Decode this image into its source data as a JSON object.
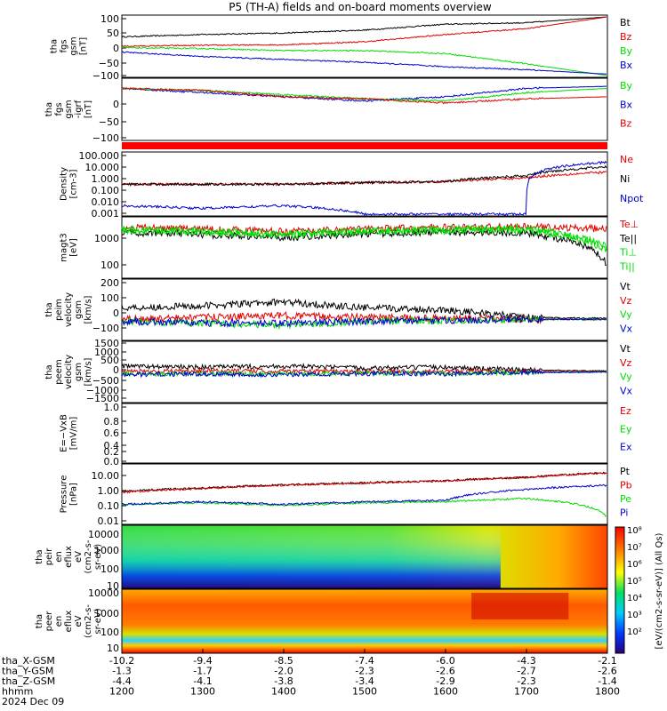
{
  "title": "P5 (TH-A) fields and on-board moments overview",
  "colors": {
    "black": "#000000",
    "red": "#e00000",
    "green": "#00dd00",
    "blue": "#0000cc"
  },
  "x_axis": {
    "ticks": [
      1200,
      1300,
      1400,
      1500,
      1600,
      1700,
      1800
    ],
    "rows": [
      {
        "label": "tha_X-GSM",
        "values": [
          "-10.2",
          "-9.4",
          "-8.5",
          "-7.4",
          "-6.0",
          "-4.3",
          "-2.1"
        ]
      },
      {
        "label": "tha_Y-GSM",
        "values": [
          "-1.3",
          "-1.7",
          "-2.0",
          "-2.3",
          "-2.6",
          "-2.7",
          "-2.6"
        ]
      },
      {
        "label": "tha_Z-GSM",
        "values": [
          "-4.4",
          "-4.1",
          "-3.8",
          "-3.4",
          "-2.9",
          "-2.3",
          "-1.4"
        ]
      },
      {
        "label": "hhmm",
        "values": [
          "1200",
          "1300",
          "1400",
          "1500",
          "1600",
          "1700",
          "1800"
        ]
      }
    ],
    "date": "2024 Dec 09"
  },
  "panels": [
    {
      "id": "fgs",
      "ylabel": [
        "tha",
        "fgs",
        "gsm",
        "[nT]"
      ],
      "ticks": [
        "100",
        "50",
        "0",
        "−50",
        "−100"
      ],
      "legend": [
        {
          "t": "Bt",
          "c": "black"
        },
        {
          "t": "Bz",
          "c": "red"
        },
        {
          "t": "By",
          "c": "green"
        },
        {
          "t": "Bx",
          "c": "blue"
        }
      ]
    },
    {
      "id": "fgs_dip",
      "ylabel": [
        "tha",
        "fgs",
        "gsm",
        "-igrf",
        "[nT]"
      ],
      "ticks": [
        "0",
        "−50",
        "−100"
      ],
      "legend": [
        {
          "t": "By",
          "c": "green"
        },
        {
          "t": "Bx",
          "c": "blue"
        },
        {
          "t": "Bz",
          "c": "red"
        }
      ]
    },
    {
      "id": "density",
      "ylabel": [
        "Density",
        "[cm-3]"
      ],
      "ticks": [
        "100.000",
        "10.000",
        "1.000",
        "0.100",
        "0.010",
        "0.001"
      ],
      "legend": [
        {
          "t": "Ne",
          "c": "red"
        },
        {
          "t": "Ni",
          "c": "black"
        },
        {
          "t": "Npot",
          "c": "blue"
        }
      ]
    },
    {
      "id": "temp",
      "ylabel": [
        "magt3",
        "[eV]"
      ],
      "ticks": [
        "1000",
        "100"
      ],
      "legend": [
        {
          "t": "Te⊥",
          "c": "red"
        },
        {
          "t": "Te||",
          "c": "black"
        },
        {
          "t": "Ti⊥",
          "c": "green"
        },
        {
          "t": "Ti||",
          "c": "green"
        }
      ]
    },
    {
      "id": "peim",
      "ylabel": [
        "tha",
        "peim",
        "velocity",
        "gsm",
        "[km/s]"
      ],
      "ticks": [
        "200",
        "100",
        "0",
        "−100"
      ],
      "legend": [
        {
          "t": "Vt",
          "c": "black"
        },
        {
          "t": "Vz",
          "c": "red"
        },
        {
          "t": "Vy",
          "c": "green"
        },
        {
          "t": "Vx",
          "c": "blue"
        }
      ]
    },
    {
      "id": "peem",
      "ylabel": [
        "tha",
        "peem",
        "velocity",
        "gsm",
        "[km/s]"
      ],
      "ticks": [
        "1500",
        "1000",
        "500",
        "0",
        "−500",
        "−1000",
        "−1500"
      ],
      "legend": [
        {
          "t": "Vt",
          "c": "black"
        },
        {
          "t": "Vz",
          "c": "red"
        },
        {
          "t": "Vy",
          "c": "green"
        },
        {
          "t": "Vx",
          "c": "blue"
        }
      ]
    },
    {
      "id": "efield",
      "ylabel": [
        "E=−VxB",
        "[mV/m]"
      ],
      "ticks": [
        "1.0",
        "0.8",
        "0.6",
        "0.4",
        "0.2",
        "0.0"
      ],
      "legend": [
        {
          "t": "Ez",
          "c": "red"
        },
        {
          "t": "Ey",
          "c": "green"
        },
        {
          "t": "Ex",
          "c": "blue"
        }
      ]
    },
    {
      "id": "pressure",
      "ylabel": [
        "Pressure",
        "[nPa]"
      ],
      "ticks": [
        "10.00",
        "1.00",
        "0.10",
        "0.01"
      ],
      "legend": [
        {
          "t": "Pt",
          "c": "black"
        },
        {
          "t": "Pb",
          "c": "red"
        },
        {
          "t": "Pe",
          "c": "green"
        },
        {
          "t": "Pi",
          "c": "blue"
        }
      ]
    },
    {
      "id": "peir",
      "ylabel": [
        "tha",
        "peir",
        "en",
        "eflux",
        "eV",
        "(cm2-s-",
        "sr-eV)"
      ],
      "ticks": [
        "10000",
        "1000",
        "100",
        "10"
      ],
      "legend": []
    },
    {
      "id": "peer",
      "ylabel": [
        "tha",
        "peer",
        "en",
        "eflux",
        "eV",
        "(cm2-s-",
        "sr-eV)"
      ],
      "ticks": [
        "10000",
        "1000",
        "100",
        "10"
      ],
      "legend": []
    }
  ],
  "colorbar": {
    "ticks": [
      "10⁸",
      "10⁷",
      "10⁶",
      "10⁵",
      "10⁴",
      "10³",
      "10²"
    ],
    "label": "[eV/(cm2-s-sr-eV)] (All Qs)"
  },
  "chart_data": {
    "type": "line",
    "title": "P5 (TH-A) fields and on-board moments overview",
    "x": [
      1200,
      1300,
      1400,
      1500,
      1600,
      1700,
      1800
    ],
    "xlabel": "hhmm",
    "panels": [
      {
        "name": "tha fgs gsm [nT]",
        "ylim": [
          -100,
          100
        ],
        "series": [
          {
            "name": "Bt",
            "values": [
              32,
              40,
              45,
              55,
              75,
              80,
              100
            ]
          },
          {
            "name": "Bz",
            "values": [
              0,
              3,
              5,
              15,
              40,
              60,
              100
            ]
          },
          {
            "name": "By",
            "values": [
              -5,
              -8,
              -15,
              -15,
              -25,
              -60,
              -100
            ]
          },
          {
            "name": "Bx",
            "values": [
              -20,
              -35,
              -45,
              -55,
              -70,
              -80,
              -95
            ]
          }
        ]
      },
      {
        "name": "tha fgs gsm -igrf [nT]",
        "ylim": [
          -120,
          20
        ],
        "series": [
          {
            "name": "Bx",
            "values": [
              0,
              -10,
              -20,
              -30,
              -20,
              0,
              5
            ]
          },
          {
            "name": "By",
            "values": [
              0,
              -5,
              -15,
              -25,
              -30,
              -10,
              0
            ]
          },
          {
            "name": "Bz",
            "values": [
              0,
              -5,
              -20,
              -25,
              -35,
              -25,
              -20
            ]
          }
        ]
      },
      {
        "name": "Density [cm-3]",
        "scale": "log",
        "ylim": [
          0.001,
          100
        ],
        "series": [
          {
            "name": "Ne",
            "values": [
              0.3,
              0.3,
              0.3,
              0.4,
              0.5,
              1.0,
              3
            ]
          },
          {
            "name": "Ni",
            "values": [
              0.3,
              0.3,
              0.3,
              0.4,
              0.5,
              1.5,
              8
            ]
          },
          {
            "name": "Npot",
            "values": [
              0.005,
              0.003,
              0.005,
              0.001,
              0.001,
              0.001,
              20
            ]
          }
        ]
      },
      {
        "name": "magt3 [eV]",
        "scale": "log",
        "ylim": [
          50,
          5000
        ],
        "series": [
          {
            "name": "Te⊥",
            "values": [
              2500,
              2200,
              1800,
              2200,
              2500,
              2600,
              2200
            ]
          },
          {
            "name": "Te||",
            "values": [
              1700,
              1400,
              1100,
              1500,
              1700,
              1600,
              120
            ]
          },
          {
            "name": "Ti⊥",
            "values": [
              2200,
              1900,
              1500,
              1900,
              2200,
              2300,
              500
            ]
          },
          {
            "name": "Ti||",
            "values": [
              1900,
              1700,
              1300,
              1700,
              1900,
              2000,
              400
            ]
          }
        ]
      },
      {
        "name": "tha peim velocity gsm [km/s]",
        "ylim": [
          -100,
          200
        ],
        "series": [
          {
            "name": "Vt",
            "values": [
              60,
              70,
              90,
              60,
              50,
              10,
              5
            ]
          },
          {
            "name": "Vz",
            "values": [
              0,
              10,
              20,
              10,
              5,
              0,
              0
            ]
          },
          {
            "name": "Vy",
            "values": [
              -10,
              -20,
              -30,
              -10,
              -5,
              0,
              0
            ]
          },
          {
            "name": "Vx",
            "values": [
              -10,
              -20,
              -20,
              -10,
              -5,
              0,
              0
            ]
          }
        ]
      },
      {
        "name": "tha peem velocity gsm [km/s]",
        "ylim": [
          -1500,
          1500
        ],
        "series": [
          {
            "name": "Vt",
            "values": [
              300,
              250,
              300,
              200,
              250,
              100,
              50
            ]
          },
          {
            "name": "Vz",
            "values": [
              50,
              50,
              50,
              30,
              40,
              20,
              10
            ]
          },
          {
            "name": "Vy",
            "values": [
              -100,
              -80,
              -100,
              -60,
              -80,
              -20,
              -10
            ]
          },
          {
            "name": "Vx",
            "values": [
              -150,
              -100,
              -150,
              -80,
              -100,
              -30,
              -10
            ]
          }
        ]
      },
      {
        "name": "E=-VxB [mV/m]",
        "ylim": [
          0,
          1
        ],
        "series": []
      },
      {
        "name": "Pressure [nPa]",
        "scale": "log",
        "ylim": [
          0.005,
          30
        ],
        "series": [
          {
            "name": "Pt",
            "values": [
              0.6,
              1.0,
              1.6,
              2.2,
              3.0,
              5.0,
              10
            ]
          },
          {
            "name": "Pb",
            "values": [
              0.5,
              0.9,
              1.5,
              2.1,
              2.9,
              5.0,
              10
            ]
          },
          {
            "name": "Pe",
            "values": [
              0.08,
              0.1,
              0.07,
              0.1,
              0.12,
              0.2,
              0.01
            ]
          },
          {
            "name": "Pi",
            "values": [
              0.08,
              0.12,
              0.08,
              0.12,
              0.15,
              0.8,
              1.5
            ]
          }
        ]
      }
    ]
  }
}
